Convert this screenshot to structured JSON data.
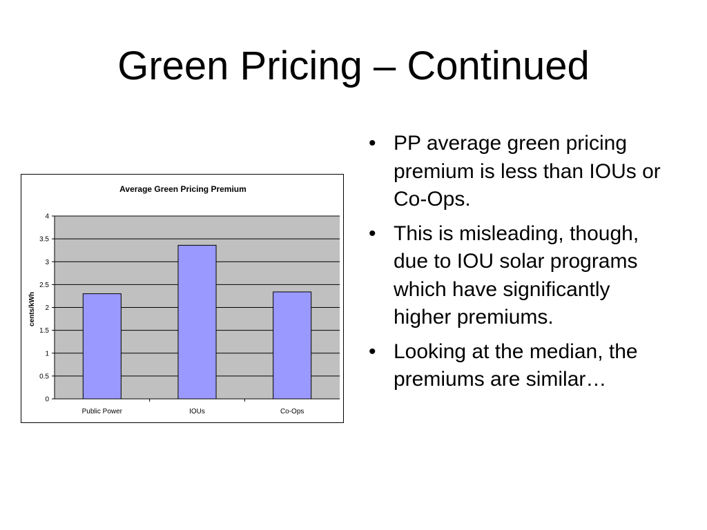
{
  "slide": {
    "title": "Green Pricing – Continued"
  },
  "bullets": [
    "PP average green pricing premium is less than IOUs or Co-Ops.",
    "This is misleading, though, due to IOU solar programs which have significantly higher premiums.",
    "Looking at the median, the premiums are similar…"
  ],
  "bullet_glyph": "•",
  "chart_data": {
    "type": "bar",
    "title": "Average Green Pricing Premium",
    "xlabel": "",
    "ylabel": "cents/kWh",
    "categories": [
      "Public Power",
      "IOUs",
      "Co-Ops"
    ],
    "values": [
      2.3,
      3.36,
      2.34
    ],
    "ylim": [
      0,
      4
    ],
    "yticks": [
      "0",
      "0.5",
      "1",
      "1.5",
      "2",
      "2.5",
      "3",
      "3.5",
      "4"
    ],
    "grid": true,
    "legend": "none",
    "colors": {
      "bar_fill": "#9999ff",
      "bar_stroke": "#000000",
      "plot_background": "#c0c0c0",
      "gridline": "#000000"
    }
  }
}
